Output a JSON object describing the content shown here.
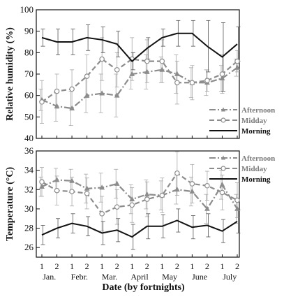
{
  "chart_data": [
    {
      "type": "line",
      "title": "",
      "ylabel": "Relative humidity (%)",
      "ylim": [
        40,
        100
      ],
      "yticks": [
        40,
        50,
        60,
        70,
        80,
        90,
        100
      ],
      "grid": false,
      "legend": "bottom-right",
      "series": [
        {
          "name": "Afternoon",
          "color": "#8c8c8c",
          "style": "dash-dot",
          "marker": "triangle",
          "values": [
            58,
            55,
            54,
            60,
            61,
            60,
            70,
            71,
            72,
            70,
            66,
            66,
            68,
            73
          ],
          "errors": [
            5,
            7,
            8,
            8,
            9,
            10,
            7,
            8,
            6,
            9,
            7,
            6,
            6,
            4
          ]
        },
        {
          "name": "Midday",
          "color": "#8c8c8c",
          "style": "dash",
          "marker": "circle",
          "values": [
            57,
            62,
            63,
            69,
            77,
            72,
            77,
            76,
            76,
            66,
            66,
            67,
            70,
            76
          ],
          "errors": [
            10,
            8,
            9,
            10,
            10,
            8,
            10,
            10,
            10,
            10,
            8,
            5,
            9,
            5
          ]
        },
        {
          "name": "Morning",
          "color": "#111111",
          "style": "solid",
          "marker": "none",
          "values": [
            87,
            85,
            85,
            87,
            86,
            84,
            76,
            82,
            87,
            89,
            89,
            83,
            78,
            84
          ],
          "errors": [
            4,
            6,
            6,
            6,
            6,
            6,
            4,
            5,
            4,
            6,
            6,
            12,
            16,
            8
          ]
        }
      ]
    },
    {
      "type": "line",
      "title": "",
      "ylabel": "Temperature (°C)",
      "ylim": [
        25,
        36
      ],
      "yticks": [
        26,
        28,
        30,
        32,
        34,
        36
      ],
      "grid": false,
      "legend": "top-right",
      "series": [
        {
          "name": "Afternoon",
          "color": "#8c8c8c",
          "style": "dash-dot",
          "marker": "triangle",
          "values": [
            32.3,
            33.0,
            32.9,
            32.1,
            32.2,
            32.6,
            31.0,
            31.5,
            31.4,
            32.0,
            31.8,
            30.0,
            32.5,
            30.0
          ],
          "errors": [
            1.0,
            1.2,
            1.2,
            1.5,
            1.5,
            1.5,
            1.5,
            1.5,
            1.5,
            1.5,
            1.5,
            1.5,
            1.5,
            1.5
          ]
        },
        {
          "name": "Midday",
          "color": "#8c8c8c",
          "style": "dash",
          "marker": "circle",
          "values": [
            32.8,
            31.9,
            31.8,
            31.6,
            29.5,
            30.2,
            30.4,
            31.0,
            31.4,
            33.7,
            32.6,
            32.4,
            31.7,
            30.9
          ],
          "errors": [
            1.5,
            1.5,
            1.5,
            1.6,
            1.8,
            1.8,
            1.8,
            1.8,
            1.8,
            2.3,
            2.0,
            1.5,
            1.8,
            1.8
          ]
        },
        {
          "name": "Morning",
          "color": "#111111",
          "style": "solid",
          "marker": "none",
          "values": [
            27.3,
            28.0,
            28.5,
            28.2,
            27.5,
            27.8,
            27.1,
            28.2,
            28.2,
            28.8,
            28.1,
            28.3,
            27.7,
            28.7
          ],
          "errors": [
            1.0,
            1.0,
            1.0,
            1.0,
            1.2,
            1.2,
            1.3,
            1.3,
            1.2,
            1.2,
            1.2,
            1.2,
            1.2,
            1.2
          ]
        }
      ]
    }
  ],
  "xaxis": {
    "xlabel": "Date (by fortnights)",
    "fortnight_labels": [
      "1",
      "2",
      "1",
      "2",
      "1",
      "2",
      "1",
      "2",
      "1",
      "2",
      "1",
      "2",
      "1",
      "2"
    ],
    "months": [
      "Jan.",
      "Febr.",
      "Mar.",
      "April",
      "May",
      "June",
      "July"
    ]
  }
}
